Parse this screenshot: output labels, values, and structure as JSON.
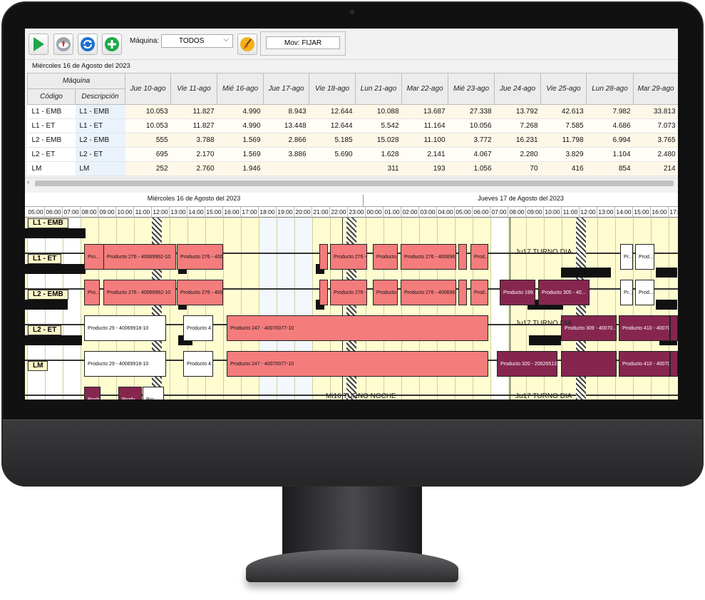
{
  "toolbar": {
    "buttons": [
      "play-icon",
      "cloud-upload-icon",
      "refresh-icon",
      "add-icon"
    ],
    "maquina_label": "Máquina:",
    "maquina_value": "TODOS",
    "broom": "broom-icon",
    "mov_value": "Mov: FIJAR"
  },
  "date_label": "Miércoles 16 de Agosto del 2023",
  "table": {
    "group_header": "Máquina",
    "col_codigo": "Código",
    "col_descripcion": "Descripción",
    "dates": [
      "Jue 10-ago",
      "Vie 11-ago",
      "Mié 16-ago",
      "Jue 17-ago",
      "Vie 18-ago",
      "Lun 21-ago",
      "Mar 22-ago",
      "Mié 23-ago",
      "Jue 24-ago",
      "Vie 25-ago",
      "Lun 28-ago",
      "Mar 29-ago"
    ],
    "rows": [
      {
        "codigo": "L1 - EMB",
        "descripcion": "L1 - EMB",
        "values": [
          "10.053",
          "11.827",
          "4.990",
          "8.943",
          "12.644",
          "10.088",
          "13.687",
          "27.338",
          "13.792",
          "42.613",
          "7.982",
          "33.813"
        ]
      },
      {
        "codigo": "L1 - ET",
        "descripcion": "L1 - ET",
        "values": [
          "10.053",
          "11.827",
          "4.990",
          "13.448",
          "12.644",
          "5.542",
          "11.164",
          "10.056",
          "7.268",
          "7.585",
          "4.686",
          "7.073"
        ]
      },
      {
        "codigo": "L2 - EMB",
        "descripcion": "L2 - EMB",
        "values": [
          "555",
          "3.788",
          "1.569",
          "2.866",
          "5.185",
          "15.028",
          "11.100",
          "3.772",
          "16.231",
          "11.798",
          "6.994",
          "3.765"
        ]
      },
      {
        "codigo": "L2 - ET",
        "descripcion": "L2 - ET",
        "values": [
          "695",
          "2.170",
          "1.569",
          "3.886",
          "5.690",
          "1.628",
          "2.141",
          "4.067",
          "2.280",
          "3.829",
          "1.104",
          "2.480"
        ]
      },
      {
        "codigo": "LM",
        "descripcion": "LM",
        "values": [
          "252",
          "2.760",
          "1.946",
          "",
          "",
          "311",
          "193",
          "1.056",
          "70",
          "416",
          "854",
          "214"
        ]
      }
    ]
  },
  "gantt": {
    "day1": "Miércoles 16 de Agosto del 2023",
    "day2": "Jueves 17 de Agosto del 2023",
    "hours": [
      "05:00",
      "06:00",
      "07:00",
      "08:00",
      "09:00",
      "10:00",
      "11:00",
      "12:00",
      "13:00",
      "14:00",
      "15:00",
      "16:00",
      "17:00",
      "18:00",
      "19:00",
      "20:00",
      "21:00",
      "22:00",
      "23:00",
      "00:00",
      "01:00",
      "02:00",
      "03:00",
      "04:00",
      "05:00",
      "06:00",
      "07:00",
      "08:00",
      "09:00",
      "10:00",
      "11:00",
      "12:00",
      "13:00",
      "14:00",
      "15:00",
      "16:00",
      "17:00"
    ],
    "machines": [
      "L1 - EMB",
      "L1 - ET",
      "L2 - EMB",
      "L2 - ET",
      "LM"
    ],
    "shifts": {
      "l1emb": "Ju17 TURNO DIA",
      "l2emb": "Ju17 TURNO DIA",
      "lm_night": "Mi16 TURNO NOCHE",
      "lm_day": "Ju17 TURNO DIA"
    },
    "tasks": {
      "p276": "Producto 276 - 40069962-10",
      "p276b": "Producto 276 - 400...",
      "p276c": "Producto 276 - 400...",
      "p276d": "Producto 276 - 4006962...",
      "pro": "Pro...",
      "prod": "Prod...",
      "pr": "Pr...",
      "pro2": "Pro...",
      "p199": "Producto 199...",
      "p305": "Producto 305 - 40...",
      "p29": "Producto 29 - 40069918-10",
      "p4": "Producto 4...",
      "p247": "Producto 247 - 40070077-10",
      "p309": "Producto 309 - 40070...",
      "p410": "Producto 410 - 40070...",
      "p320": "Producto 320 - 206265131...",
      "p410b": "Producto 410 - 40070...",
      "produ": "Produ..."
    }
  }
}
